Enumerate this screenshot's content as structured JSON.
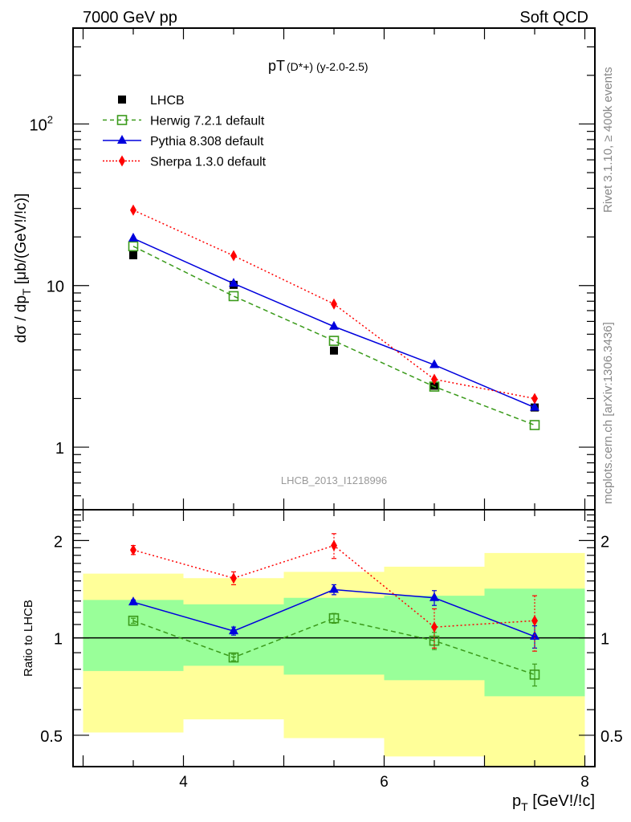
{
  "header": {
    "left": "7000 GeV pp",
    "right": "Soft QCD"
  },
  "side_labels": {
    "rivet": "Rivet 3.1.10, ≥ 400k events",
    "mcplots": "mcplots.cern.ch [arXiv:1306.3436]"
  },
  "watermark": "LHCB_2013_I1218996",
  "chart_data": [
    {
      "type": "line",
      "panel": "main",
      "title_main": "pT",
      "title_sub": "(D*+) (y-2.0-2.5)",
      "xlabel": "p_T [GeV!/!c]",
      "ylabel": "dσ / dp_T [μb/(GeV!/!c)]",
      "yscale": "log",
      "xlim": [
        2.9,
        8.1
      ],
      "ylim": [
        0.41,
        392
      ],
      "yticks": [
        {
          "value": 1,
          "label": "1"
        },
        {
          "value": 10,
          "label": "10"
        },
        {
          "value": 100,
          "label": "10",
          "sup": "2"
        }
      ],
      "grid": false,
      "legend_position": "top-left",
      "x": [
        3.5,
        4.5,
        5.5,
        6.5,
        7.5
      ],
      "series": [
        {
          "name": "LHCB",
          "style": "data",
          "color": "#000000",
          "marker": "square-filled",
          "values": [
            15.4,
            10.1,
            3.96,
            2.4,
            1.76
          ]
        },
        {
          "name": "Herwig 7.2.1 default",
          "style": "dashed",
          "color": "#3a9a1a",
          "marker": "square-open",
          "values": [
            17.5,
            8.6,
            4.55,
            2.37,
            1.37
          ]
        },
        {
          "name": "Pythia 8.308 default",
          "style": "solid",
          "color": "#0000dd",
          "marker": "triangle",
          "values": [
            19.6,
            10.3,
            5.58,
            3.23,
            1.76
          ]
        },
        {
          "name": "Sherpa 1.3.0 default",
          "style": "dotted",
          "color": "#ff0000",
          "marker": "diamond",
          "values": [
            29.3,
            15.3,
            7.69,
            2.63,
            2.0
          ]
        }
      ]
    },
    {
      "type": "line",
      "panel": "ratio",
      "ylabel": "Ratio to LHCB",
      "xlabel": "p_T [GeV!/!c]",
      "yscale": "log",
      "xlim": [
        2.9,
        8.1
      ],
      "ylim": [
        0.4,
        2.49
      ],
      "xticks": [
        {
          "value": 4,
          "label": "4"
        },
        {
          "value": 6,
          "label": "6"
        },
        {
          "value": 8,
          "label": "8"
        }
      ],
      "yticks": [
        {
          "value": 0.5,
          "label": "0.5"
        },
        {
          "value": 1,
          "label": "1"
        },
        {
          "value": 2,
          "label": "2"
        }
      ],
      "bands": {
        "bin_edges": [
          3,
          4,
          5,
          6,
          7,
          8
        ],
        "outer": {
          "color": "#ffff99",
          "low": [
            0.51,
            0.56,
            0.49,
            0.43,
            0.4
          ],
          "high": [
            1.58,
            1.53,
            1.6,
            1.66,
            1.83
          ]
        },
        "inner": {
          "color": "#99ff99",
          "low": [
            0.79,
            0.82,
            0.77,
            0.74,
            0.66
          ],
          "high": [
            1.31,
            1.27,
            1.33,
            1.35,
            1.42
          ]
        }
      },
      "x": [
        3.5,
        4.5,
        5.5,
        6.5,
        7.5
      ],
      "series": [
        {
          "name": "Herwig 7.2.1 default",
          "style": "dashed",
          "color": "#3a9a1a",
          "marker": "square-open",
          "values": [
            1.13,
            0.87,
            1.15,
            0.98,
            0.77
          ],
          "err": [
            0.02,
            0.02,
            0.04,
            0.06,
            0.06
          ]
        },
        {
          "name": "Pythia 8.308 default",
          "style": "solid",
          "color": "#0000dd",
          "marker": "triangle",
          "values": [
            1.29,
            1.05,
            1.41,
            1.33,
            1.01
          ],
          "err": [
            0.02,
            0.03,
            0.05,
            0.07,
            0.08
          ]
        },
        {
          "name": "Sherpa 1.3.0 default",
          "style": "dotted",
          "color": "#ff0000",
          "marker": "diamond",
          "values": [
            1.87,
            1.53,
            1.93,
            1.08,
            1.13
          ],
          "err": [
            0.06,
            0.07,
            0.17,
            0.15,
            0.22
          ]
        }
      ]
    }
  ]
}
